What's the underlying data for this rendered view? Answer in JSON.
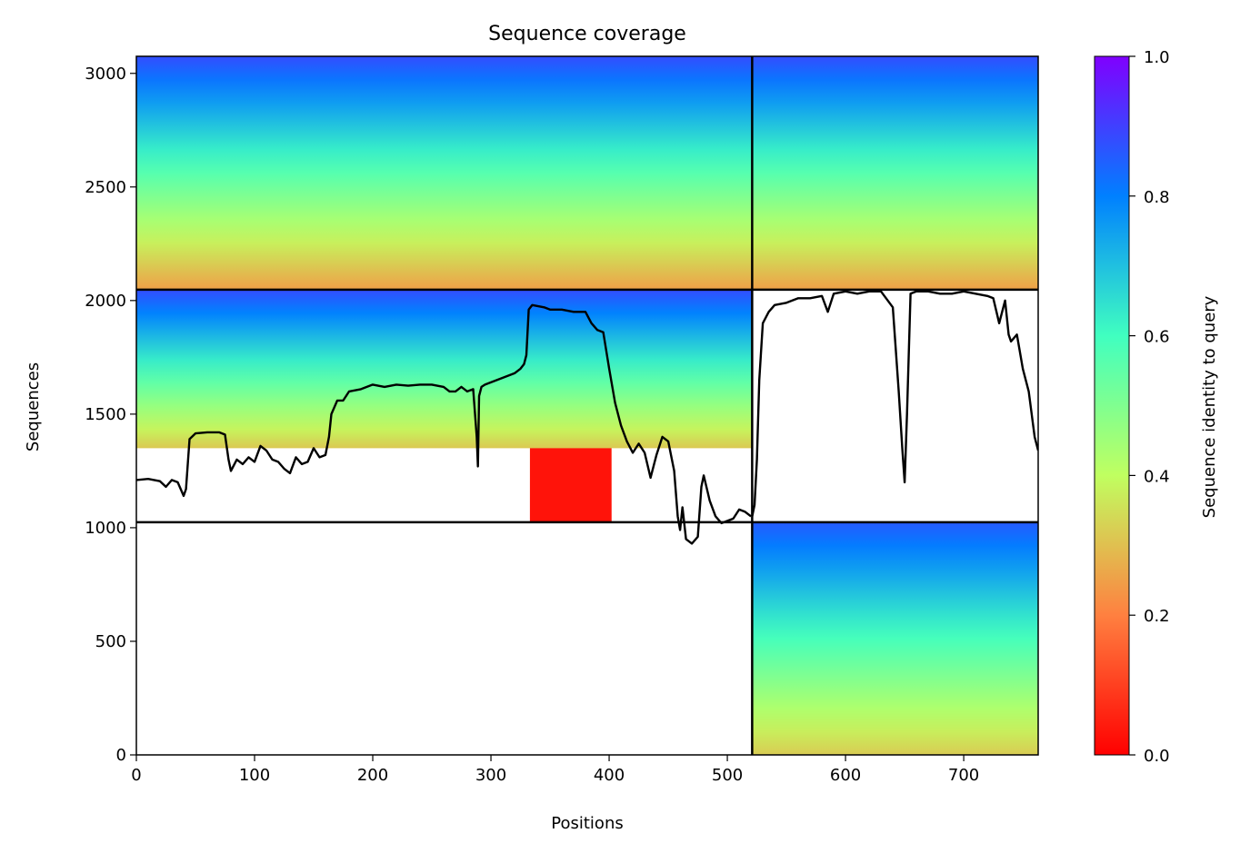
{
  "chart_data": {
    "type": "heatmap",
    "title": "Sequence coverage",
    "xlabel": "Positions",
    "ylabel": "Sequences",
    "colorbar_label": "Sequence identity to query",
    "xlim": [
      0,
      763
    ],
    "ylim": [
      0,
      3075
    ],
    "xticks": [
      0,
      100,
      200,
      300,
      400,
      500,
      600,
      700
    ],
    "yticks": [
      0,
      500,
      1000,
      1500,
      2000,
      2500,
      3000
    ],
    "colorbar_ticks": [
      0.0,
      0.2,
      0.4,
      0.6,
      0.8,
      1.0
    ],
    "colorbar_tick_labels": [
      "0.0",
      "0.2",
      "0.4",
      "0.6",
      "0.8",
      "1.0"
    ],
    "colormap": "rainbow_r",
    "colormap_stops": [
      "#ff0000",
      "#ff8040",
      "#c0ff60",
      "#40ffc0",
      "#0080ff",
      "#8000ff"
    ],
    "chain_boundary_x": 521,
    "row_boundaries_y": [
      1024,
      2048
    ],
    "blocks": [
      {
        "name": "chain1-full",
        "x": [
          0,
          521
        ],
        "y": [
          1024,
          2048
        ],
        "identity_top": 0.88,
        "identity_bottom": 0.05
      },
      {
        "name": "chain1-paired",
        "x": [
          0,
          521
        ],
        "y": [
          2048,
          3075
        ],
        "identity_top": 0.88,
        "identity_bottom": 0.25
      },
      {
        "name": "chain2-paired",
        "x": [
          521,
          763
        ],
        "y": [
          2048,
          3075
        ],
        "identity_top": 0.88,
        "identity_bottom": 0.25
      },
      {
        "name": "chain2-unpaired",
        "x": [
          521,
          763
        ],
        "y": [
          0,
          1024
        ],
        "identity_top": 0.86,
        "identity_bottom": 0.32
      }
    ],
    "low_identity_block": {
      "x": [
        333,
        402
      ],
      "y": [
        1024,
        1350
      ],
      "identity": 0.03
    },
    "coverage_line_chain1": {
      "x": [
        0,
        10,
        20,
        25,
        30,
        35,
        40,
        42,
        45,
        50,
        60,
        70,
        75,
        78,
        80,
        85,
        90,
        95,
        100,
        105,
        110,
        115,
        120,
        125,
        130,
        135,
        140,
        145,
        150,
        155,
        160,
        163,
        165,
        170,
        175,
        180,
        190,
        200,
        210,
        220,
        230,
        240,
        250,
        260,
        265,
        270,
        275,
        280,
        285,
        288,
        289,
        290,
        292,
        295,
        300,
        310,
        320,
        325,
        328,
        330,
        332,
        335,
        340,
        345,
        350,
        360,
        370,
        380,
        385,
        390,
        395,
        400,
        405,
        410,
        415,
        420,
        425,
        430,
        435,
        440,
        445,
        450,
        455,
        458,
        460,
        462,
        465,
        470,
        475,
        478,
        480,
        485,
        490,
        495,
        500,
        505,
        510,
        515,
        520
      ],
      "y": [
        1210,
        1215,
        1205,
        1180,
        1210,
        1200,
        1140,
        1170,
        1390,
        1415,
        1420,
        1420,
        1410,
        1300,
        1250,
        1300,
        1280,
        1310,
        1290,
        1360,
        1340,
        1300,
        1290,
        1260,
        1240,
        1310,
        1280,
        1290,
        1350,
        1310,
        1320,
        1400,
        1500,
        1560,
        1560,
        1600,
        1610,
        1630,
        1620,
        1630,
        1625,
        1630,
        1630,
        1620,
        1600,
        1600,
        1620,
        1600,
        1610,
        1400,
        1270,
        1580,
        1620,
        1630,
        1640,
        1660,
        1680,
        1700,
        1720,
        1760,
        1960,
        1980,
        1975,
        1970,
        1960,
        1960,
        1950,
        1950,
        1900,
        1870,
        1860,
        1700,
        1550,
        1450,
        1380,
        1330,
        1370,
        1330,
        1220,
        1320,
        1400,
        1380,
        1250,
        1050,
        990,
        1090,
        950,
        930,
        960,
        1180,
        1230,
        1120,
        1050,
        1020,
        1030,
        1040,
        1080,
        1070,
        1050
      ]
    },
    "coverage_line_chain2": {
      "x": [
        521,
        523,
        525,
        527,
        530,
        535,
        540,
        550,
        560,
        570,
        580,
        585,
        590,
        600,
        610,
        620,
        630,
        640,
        645,
        648,
        650,
        652,
        655,
        660,
        670,
        680,
        690,
        700,
        710,
        720,
        725,
        730,
        735,
        738,
        740,
        745,
        750,
        755,
        760,
        763
      ],
      "y": [
        1050,
        1100,
        1300,
        1650,
        1900,
        1950,
        1980,
        1990,
        2010,
        2010,
        2020,
        1950,
        2030,
        2040,
        2030,
        2040,
        2040,
        1970,
        1600,
        1350,
        1200,
        1500,
        2030,
        2040,
        2040,
        2030,
        2030,
        2040,
        2030,
        2020,
        2010,
        1900,
        2000,
        1850,
        1820,
        1850,
        1700,
        1600,
        1400,
        1340
      ]
    }
  }
}
